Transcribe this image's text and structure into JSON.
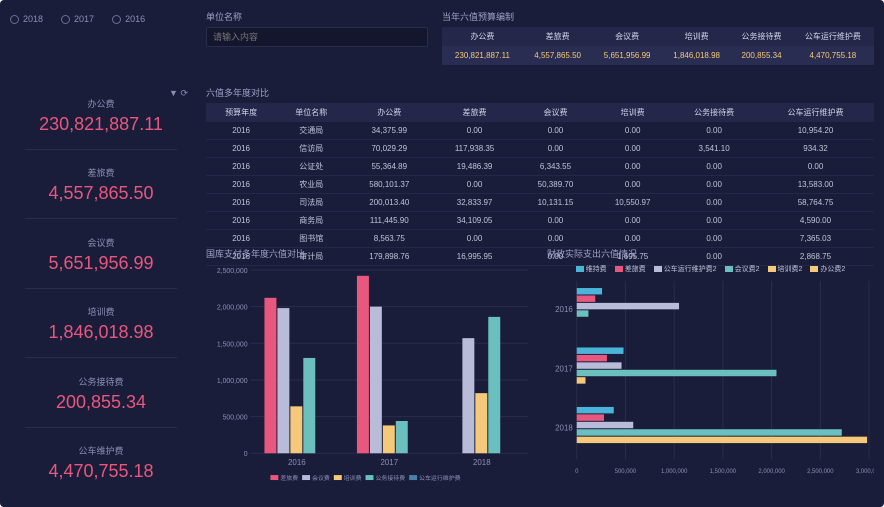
{
  "years": [
    "2018",
    "2017",
    "2016"
  ],
  "search": {
    "label": "单位名称",
    "placeholder": "请输入内容"
  },
  "budget": {
    "label": "当年六值预算编制",
    "columns": [
      "办公费",
      "差旅费",
      "会议费",
      "培训费",
      "公务接待费",
      "公车运行维护费"
    ],
    "row": [
      "230,821,887.11",
      "4,557,865.50",
      "5,651,956.99",
      "1,846,018.98",
      "200,855.34",
      "4,470,755.18"
    ]
  },
  "metrics": [
    {
      "label": "办公费",
      "value": "230,821,887.11",
      "filter": true
    },
    {
      "label": "差旅费",
      "value": "4,557,865.50"
    },
    {
      "label": "会议费",
      "value": "5,651,956.99"
    },
    {
      "label": "培训费",
      "value": "1,846,018.98"
    },
    {
      "label": "公务接待费",
      "value": "200,855.34"
    },
    {
      "label": "公车维护费",
      "value": "4,470,755.18"
    }
  ],
  "compare": {
    "label": "六值多年度对比",
    "columns": [
      "预算年度",
      "单位名称",
      "办公费",
      "差旅费",
      "会议费",
      "培训费",
      "公务接待费",
      "公车运行维护费"
    ],
    "rows": [
      [
        "2016",
        "交通局",
        "34,375.99",
        "0.00",
        "0.00",
        "0.00",
        "0.00",
        "10,954.20"
      ],
      [
        "2016",
        "信访局",
        "70,029.29",
        "117,938.35",
        "0.00",
        "0.00",
        "3,541.10",
        "934.32"
      ],
      [
        "2016",
        "公证处",
        "55,364.89",
        "19,486.39",
        "6,343.55",
        "0.00",
        "0.00",
        "0.00"
      ],
      [
        "2016",
        "农业局",
        "580,101.37",
        "0.00",
        "50,389.70",
        "0.00",
        "0.00",
        "13,583.00"
      ],
      [
        "2016",
        "司法局",
        "200,013.40",
        "32,833.97",
        "10,131.15",
        "10,550.97",
        "0.00",
        "58,764.75"
      ],
      [
        "2016",
        "商务局",
        "111,445.90",
        "34,109.05",
        "0.00",
        "0.00",
        "0.00",
        "4,590.00"
      ],
      [
        "2016",
        "图书馆",
        "8,563.75",
        "0.00",
        "0.00",
        "0.00",
        "0.00",
        "7,365.03"
      ],
      [
        "2016",
        "审计局",
        "179,898.76",
        "16,995.95",
        "0.00",
        "1,695.75",
        "0.00",
        "2,868.75"
      ]
    ]
  },
  "bar_chart": {
    "label": "国库支付多年度六值对比",
    "colors": {
      "差旅费": "#e8577d",
      "会议费": "#b8bcd8",
      "培训费": "#f5c97a",
      "公务接待费": "#6bbfbf",
      "公车运行维护费": "#4a7fa8"
    },
    "years": [
      "2016",
      "2017",
      "2018"
    ],
    "ylim": [
      0,
      2500000
    ],
    "ystep": 500000,
    "legend": [
      "差旅费",
      "会议费",
      "培训费",
      "公务接待费",
      "公车运行维护费"
    ],
    "series": {
      "2016": [
        2120000,
        1980000,
        640000,
        1300000,
        0
      ],
      "2017": [
        2420000,
        2000000,
        380000,
        440000,
        0
      ],
      "2018": [
        0,
        1570000,
        820000,
        1860000,
        0
      ]
    },
    "bg": "#1a1d3a",
    "grid": "#2a2d4a",
    "axis_color": "#5a5f85"
  },
  "hbar_chart": {
    "label": "财政实际支出六值情况",
    "colors": {
      "维持费": "#4ab5d8",
      "差旅费": "#e8577d",
      "公车运行维护费2": "#b8bcd8",
      "会议费2": "#6bbfbf",
      "培训费2": "#f5c97a",
      "办公费2": "#f5c97a"
    },
    "legend": [
      "维持费",
      "差旅费",
      "公车运行维护费2",
      "会议费2",
      "培训费2",
      "办公费2"
    ],
    "years": [
      "2016",
      "2017",
      "2018"
    ],
    "xlim": [
      0,
      3000000
    ],
    "xstep": 500000,
    "series": {
      "2016": [
        260000,
        190000,
        1050000,
        120000,
        0,
        0
      ],
      "2017": [
        480000,
        310000,
        460000,
        2050000,
        90000,
        0
      ],
      "2018": [
        380000,
        280000,
        580000,
        2720000,
        2980000,
        0
      ]
    }
  }
}
